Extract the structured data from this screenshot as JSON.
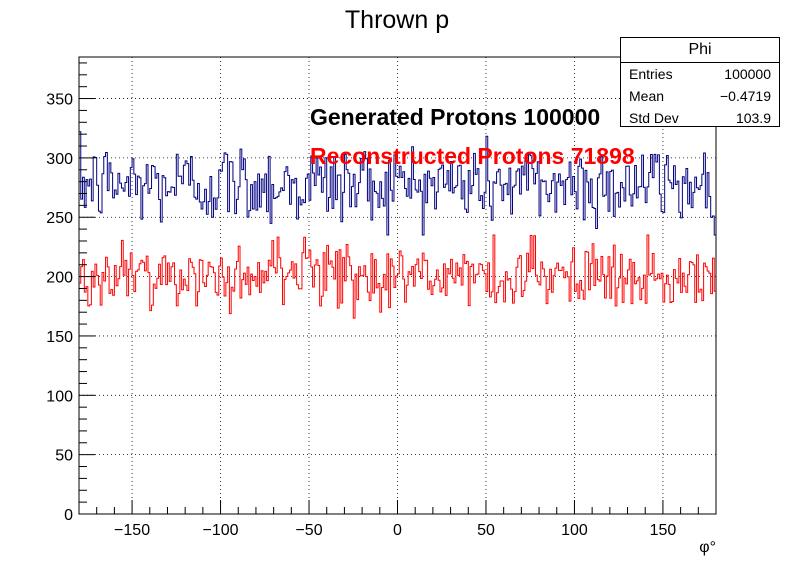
{
  "chart_data": {
    "type": "histogram",
    "title": "Thrown p",
    "xlabel": "φ°",
    "ylabel": "",
    "xlim": [
      -180,
      180
    ],
    "ylim": [
      0,
      385
    ],
    "xticks": [
      -150,
      -100,
      -50,
      0,
      50,
      100,
      150
    ],
    "xtick_labels": [
      "−150",
      "−100",
      "−50",
      "0",
      "50",
      "100",
      "150"
    ],
    "yticks": [
      0,
      50,
      100,
      150,
      200,
      250,
      300,
      350
    ],
    "grid": true,
    "bins": 360,
    "series": [
      {
        "name": "Generated Protons 100000",
        "color": "#000080",
        "mean_level": 278,
        "min": 235,
        "max": 322
      },
      {
        "name": "Reconstructed Protons 71898",
        "color": "#ff0000",
        "mean_level": 200,
        "min": 165,
        "max": 235
      }
    ],
    "annotations": [
      {
        "text": "Generated Protons 100000",
        "color": "#000000"
      },
      {
        "text": "Reconstructed Protons 71898",
        "color": "#ff0000"
      }
    ],
    "stats": {
      "title": "Phi",
      "rows": [
        {
          "label": "Entries",
          "value": "100000"
        },
        {
          "label": "Mean",
          "value": "−0.4719"
        },
        {
          "label": "Std Dev",
          "value": "103.9"
        }
      ]
    }
  }
}
